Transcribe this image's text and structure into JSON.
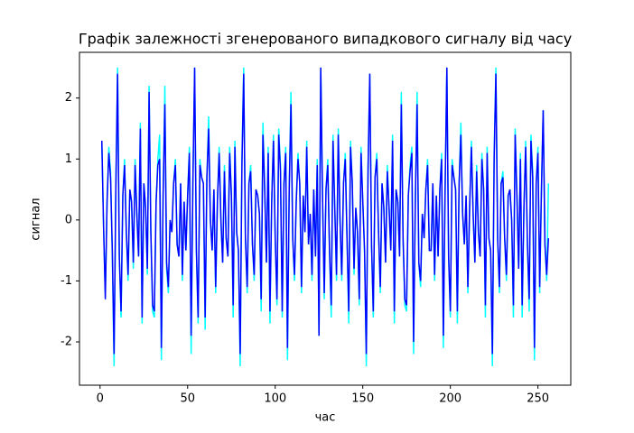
{
  "chart_data": {
    "type": "line",
    "title": "Графік залежності згенерованого випадкового сигналу від часу",
    "xlabel": "час",
    "ylabel": "сигнал",
    "xlim": [
      -11.75,
      268.75
    ],
    "ylim": [
      -2.71,
      2.75
    ],
    "xticks": [
      0,
      50,
      100,
      150,
      200,
      250
    ],
    "yticks": [
      -2,
      -1,
      0,
      1,
      2
    ],
    "x": [
      1,
      2,
      3,
      4,
      5,
      6,
      7,
      8,
      9,
      10,
      11,
      12,
      13,
      14,
      15,
      16,
      17,
      18,
      19,
      20,
      21,
      22,
      23,
      24,
      25,
      26,
      27,
      28,
      29,
      30,
      31,
      32,
      33,
      34,
      35,
      36,
      37,
      38,
      39,
      40,
      41,
      42,
      43,
      44,
      45,
      46,
      47,
      48,
      49,
      50,
      51,
      52,
      53,
      54,
      55,
      56,
      57,
      58,
      59,
      60,
      61,
      62,
      63,
      64,
      65,
      66,
      67,
      68,
      69,
      70,
      71,
      72,
      73,
      74,
      75,
      76,
      77,
      78,
      79,
      80,
      81,
      82,
      83,
      84,
      85,
      86,
      87,
      88,
      89,
      90,
      91,
      92,
      93,
      94,
      95,
      96,
      97,
      98,
      99,
      100,
      101,
      102,
      103,
      104,
      105,
      106,
      107,
      108,
      109,
      110,
      111,
      112,
      113,
      114,
      115,
      116,
      117,
      118,
      119,
      120,
      121,
      122,
      123,
      124,
      125,
      126,
      127,
      128,
      129,
      130,
      131,
      132,
      133,
      134,
      135,
      136,
      137,
      138,
      139,
      140,
      141,
      142,
      143,
      144,
      145,
      146,
      147,
      148,
      149,
      150,
      151,
      152,
      153,
      154,
      155,
      156,
      157,
      158,
      159,
      160,
      161,
      162,
      163,
      164,
      165,
      166,
      167,
      168,
      169,
      170,
      171,
      172,
      173,
      174,
      175,
      176,
      177,
      178,
      179,
      180,
      181,
      182,
      183,
      184,
      185,
      186,
      187,
      188,
      189,
      190,
      191,
      192,
      193,
      194,
      195,
      196,
      197,
      198,
      199,
      200,
      201,
      202,
      203,
      204,
      205,
      206,
      207,
      208,
      209,
      210,
      211,
      212,
      213,
      214,
      215,
      216,
      217,
      218,
      219,
      220,
      221,
      222,
      223,
      224,
      225,
      226,
      227,
      228,
      229,
      230,
      231,
      232,
      233,
      234,
      235,
      236,
      237,
      238,
      239,
      240,
      241,
      242,
      243,
      244,
      245,
      246,
      247,
      248,
      249,
      250,
      251,
      252,
      253,
      254,
      255,
      256
    ],
    "series": [
      {
        "color": "#00ffff",
        "values": [
          1.3,
          -0.1,
          -1.2,
          0.3,
          1.2,
          0.8,
          -0.6,
          -2.4,
          0.5,
          2.5,
          -0.6,
          -1.6,
          0.4,
          1.0,
          -0.2,
          -1.0,
          0.5,
          0.3,
          -0.8,
          1.0,
          0.1,
          -0.6,
          1.6,
          -1.7,
          0.6,
          0.2,
          -0.9,
          2.2,
          -0.2,
          -1.5,
          -1.6,
          0.3,
          1.0,
          1.4,
          -2.3,
          0.4,
          2.2,
          -0.8,
          -1.2,
          0.0,
          -0.2,
          0.6,
          1.0,
          -0.4,
          -0.6,
          0.6,
          -1.0,
          0.3,
          -0.5,
          0.4,
          1.2,
          -2.2,
          0.6,
          2.5,
          -0.5,
          -1.7,
          1.0,
          0.7,
          0.6,
          -1.8,
          0.7,
          1.7,
          0.0,
          -0.5,
          0.5,
          -1.2,
          0.3,
          1.2,
          0.0,
          -0.7,
          0.9,
          -0.3,
          -0.6,
          1.2,
          0.4,
          -1.6,
          1.3,
          -0.2,
          -0.5,
          -2.4,
          1.0,
          2.5,
          -0.3,
          -1.2,
          0.6,
          0.9,
          -0.4,
          -1.0,
          0.5,
          0.4,
          0.1,
          -1.5,
          1.6,
          0.5,
          -0.7,
          1.2,
          -1.7,
          0.3,
          1.4,
          -0.3,
          -1.4,
          1.5,
          0.9,
          -1.6,
          0.6,
          1.2,
          -2.3,
          0.5,
          2.1,
          -0.3,
          -1.0,
          0.3,
          1.1,
          0.6,
          -1.2,
          0.4,
          -0.2,
          1.3,
          -0.4,
          0.1,
          -1.0,
          0.5,
          -0.6,
          1.0,
          -1.9,
          2.5,
          0.4,
          -1.3,
          0.5,
          1.0,
          -0.5,
          -1.6,
          1.4,
          0.2,
          -1.0,
          1.5,
          0.0,
          -1.0,
          0.6,
          1.1,
          -0.3,
          -1.7,
          1.3,
          0.6,
          -0.9,
          0.2,
          -0.2,
          -1.4,
          1.2,
          0.3,
          -0.5,
          -2.4,
          0.9,
          2.4,
          -0.4,
          -1.6,
          0.7,
          1.1,
          -0.2,
          -1.2,
          0.6,
          0.2,
          -0.7,
          0.9,
          0.2,
          -0.5,
          1.4,
          -1.7,
          0.5,
          0.3,
          -0.6,
          2.1,
          -0.3,
          -1.4,
          -1.5,
          0.4,
          0.9,
          1.2,
          -2.2,
          0.3,
          2.1,
          -0.7,
          -1.1,
          0.1,
          -0.3,
          0.5,
          1.0,
          -0.5,
          -0.5,
          0.6,
          -1.0,
          0.4,
          -0.6,
          0.5,
          1.1,
          -2.1,
          0.5,
          2.5,
          -0.6,
          -1.6,
          1.0,
          0.7,
          0.5,
          -1.7,
          0.6,
          1.6,
          0.1,
          -0.4,
          0.4,
          -1.2,
          0.2,
          1.3,
          0.1,
          -0.7,
          0.9,
          -0.2,
          -0.6,
          1.1,
          0.5,
          -1.6,
          1.2,
          -0.3,
          -0.5,
          -2.4,
          1.1,
          2.5,
          -0.3,
          -1.2,
          0.6,
          0.8,
          -0.3,
          -1.0,
          0.4,
          0.5,
          0.0,
          -1.6,
          1.5,
          0.4,
          -0.8,
          1.1,
          -1.6,
          0.2,
          1.3,
          -0.4,
          -1.5,
          1.4,
          0.8,
          -2.3,
          0.6,
          1.2,
          -1.2,
          0.5,
          1.8,
          -0.4,
          -1.0,
          0.6
        ]
      },
      {
        "color": "#0000ff",
        "values": [
          1.3,
          -0.1,
          -1.3,
          0.3,
          1.1,
          0.7,
          -0.5,
          -2.2,
          0.5,
          2.4,
          -0.6,
          -1.5,
          0.4,
          0.9,
          -0.2,
          -0.9,
          0.5,
          0.3,
          -0.7,
          0.9,
          0.1,
          -0.6,
          1.5,
          -1.6,
          0.6,
          0.2,
          -0.8,
          2.1,
          -0.2,
          -1.4,
          -1.5,
          0.3,
          0.9,
          1.0,
          -2.1,
          0.4,
          1.9,
          -0.7,
          -1.1,
          0.0,
          -0.2,
          0.6,
          0.9,
          -0.4,
          -0.6,
          0.6,
          -0.9,
          0.3,
          -0.5,
          0.4,
          1.1,
          -1.9,
          0.6,
          2.5,
          -0.5,
          -1.6,
          0.9,
          0.7,
          0.6,
          -1.6,
          0.7,
          1.5,
          0.0,
          -0.5,
          0.5,
          -1.1,
          0.3,
          1.1,
          0.0,
          -0.7,
          0.8,
          -0.3,
          -0.6,
          1.1,
          0.4,
          -1.4,
          1.2,
          -0.2,
          -0.5,
          -2.2,
          0.9,
          2.4,
          -0.3,
          -1.1,
          0.6,
          0.8,
          -0.4,
          -0.9,
          0.5,
          0.4,
          0.1,
          -1.3,
          1.4,
          0.5,
          -0.7,
          1.1,
          -1.5,
          0.3,
          1.3,
          -0.3,
          -1.3,
          1.4,
          0.8,
          -1.5,
          0.6,
          1.1,
          -2.1,
          0.5,
          1.9,
          -0.3,
          -0.9,
          0.3,
          1.0,
          0.6,
          -1.1,
          0.4,
          -0.2,
          1.2,
          -0.4,
          0.1,
          -0.9,
          0.5,
          -0.6,
          0.9,
          -1.9,
          2.5,
          0.4,
          -1.2,
          0.5,
          0.9,
          -0.5,
          -1.4,
          1.3,
          0.2,
          -0.9,
          1.4,
          0.0,
          -0.9,
          0.6,
          1.0,
          -0.3,
          -1.5,
          1.2,
          0.6,
          -0.8,
          0.2,
          -0.2,
          -1.3,
          1.1,
          0.3,
          -0.5,
          -2.2,
          0.8,
          2.4,
          -0.4,
          -1.5,
          0.7,
          1.0,
          -0.2,
          -1.1,
          0.6,
          0.2,
          -0.7,
          0.8,
          0.2,
          -0.5,
          1.3,
          -1.5,
          0.5,
          0.3,
          -0.6,
          1.9,
          -0.3,
          -1.3,
          -1.4,
          0.4,
          0.8,
          1.1,
          -2.0,
          0.3,
          1.9,
          -0.7,
          -1.0,
          0.1,
          -0.3,
          0.5,
          0.9,
          -0.5,
          -0.5,
          0.6,
          -0.9,
          0.4,
          -0.6,
          0.5,
          1.0,
          -1.9,
          0.5,
          2.5,
          -0.6,
          -1.5,
          0.9,
          0.7,
          0.5,
          -1.5,
          0.6,
          1.4,
          0.1,
          -0.4,
          0.4,
          -1.1,
          0.2,
          1.2,
          0.1,
          -0.7,
          0.8,
          -0.2,
          -0.6,
          1.0,
          0.5,
          -1.4,
          1.1,
          -0.3,
          -0.5,
          -2.2,
          1.0,
          2.4,
          -0.3,
          -1.1,
          0.6,
          0.7,
          -0.3,
          -0.9,
          0.4,
          0.5,
          0.0,
          -1.4,
          1.4,
          0.4,
          -0.8,
          1.0,
          -1.4,
          0.2,
          1.2,
          -0.4,
          -1.3,
          1.3,
          0.7,
          -2.1,
          0.6,
          1.1,
          -1.1,
          0.5,
          1.8,
          -0.4,
          -0.9,
          -0.3
        ]
      }
    ]
  }
}
